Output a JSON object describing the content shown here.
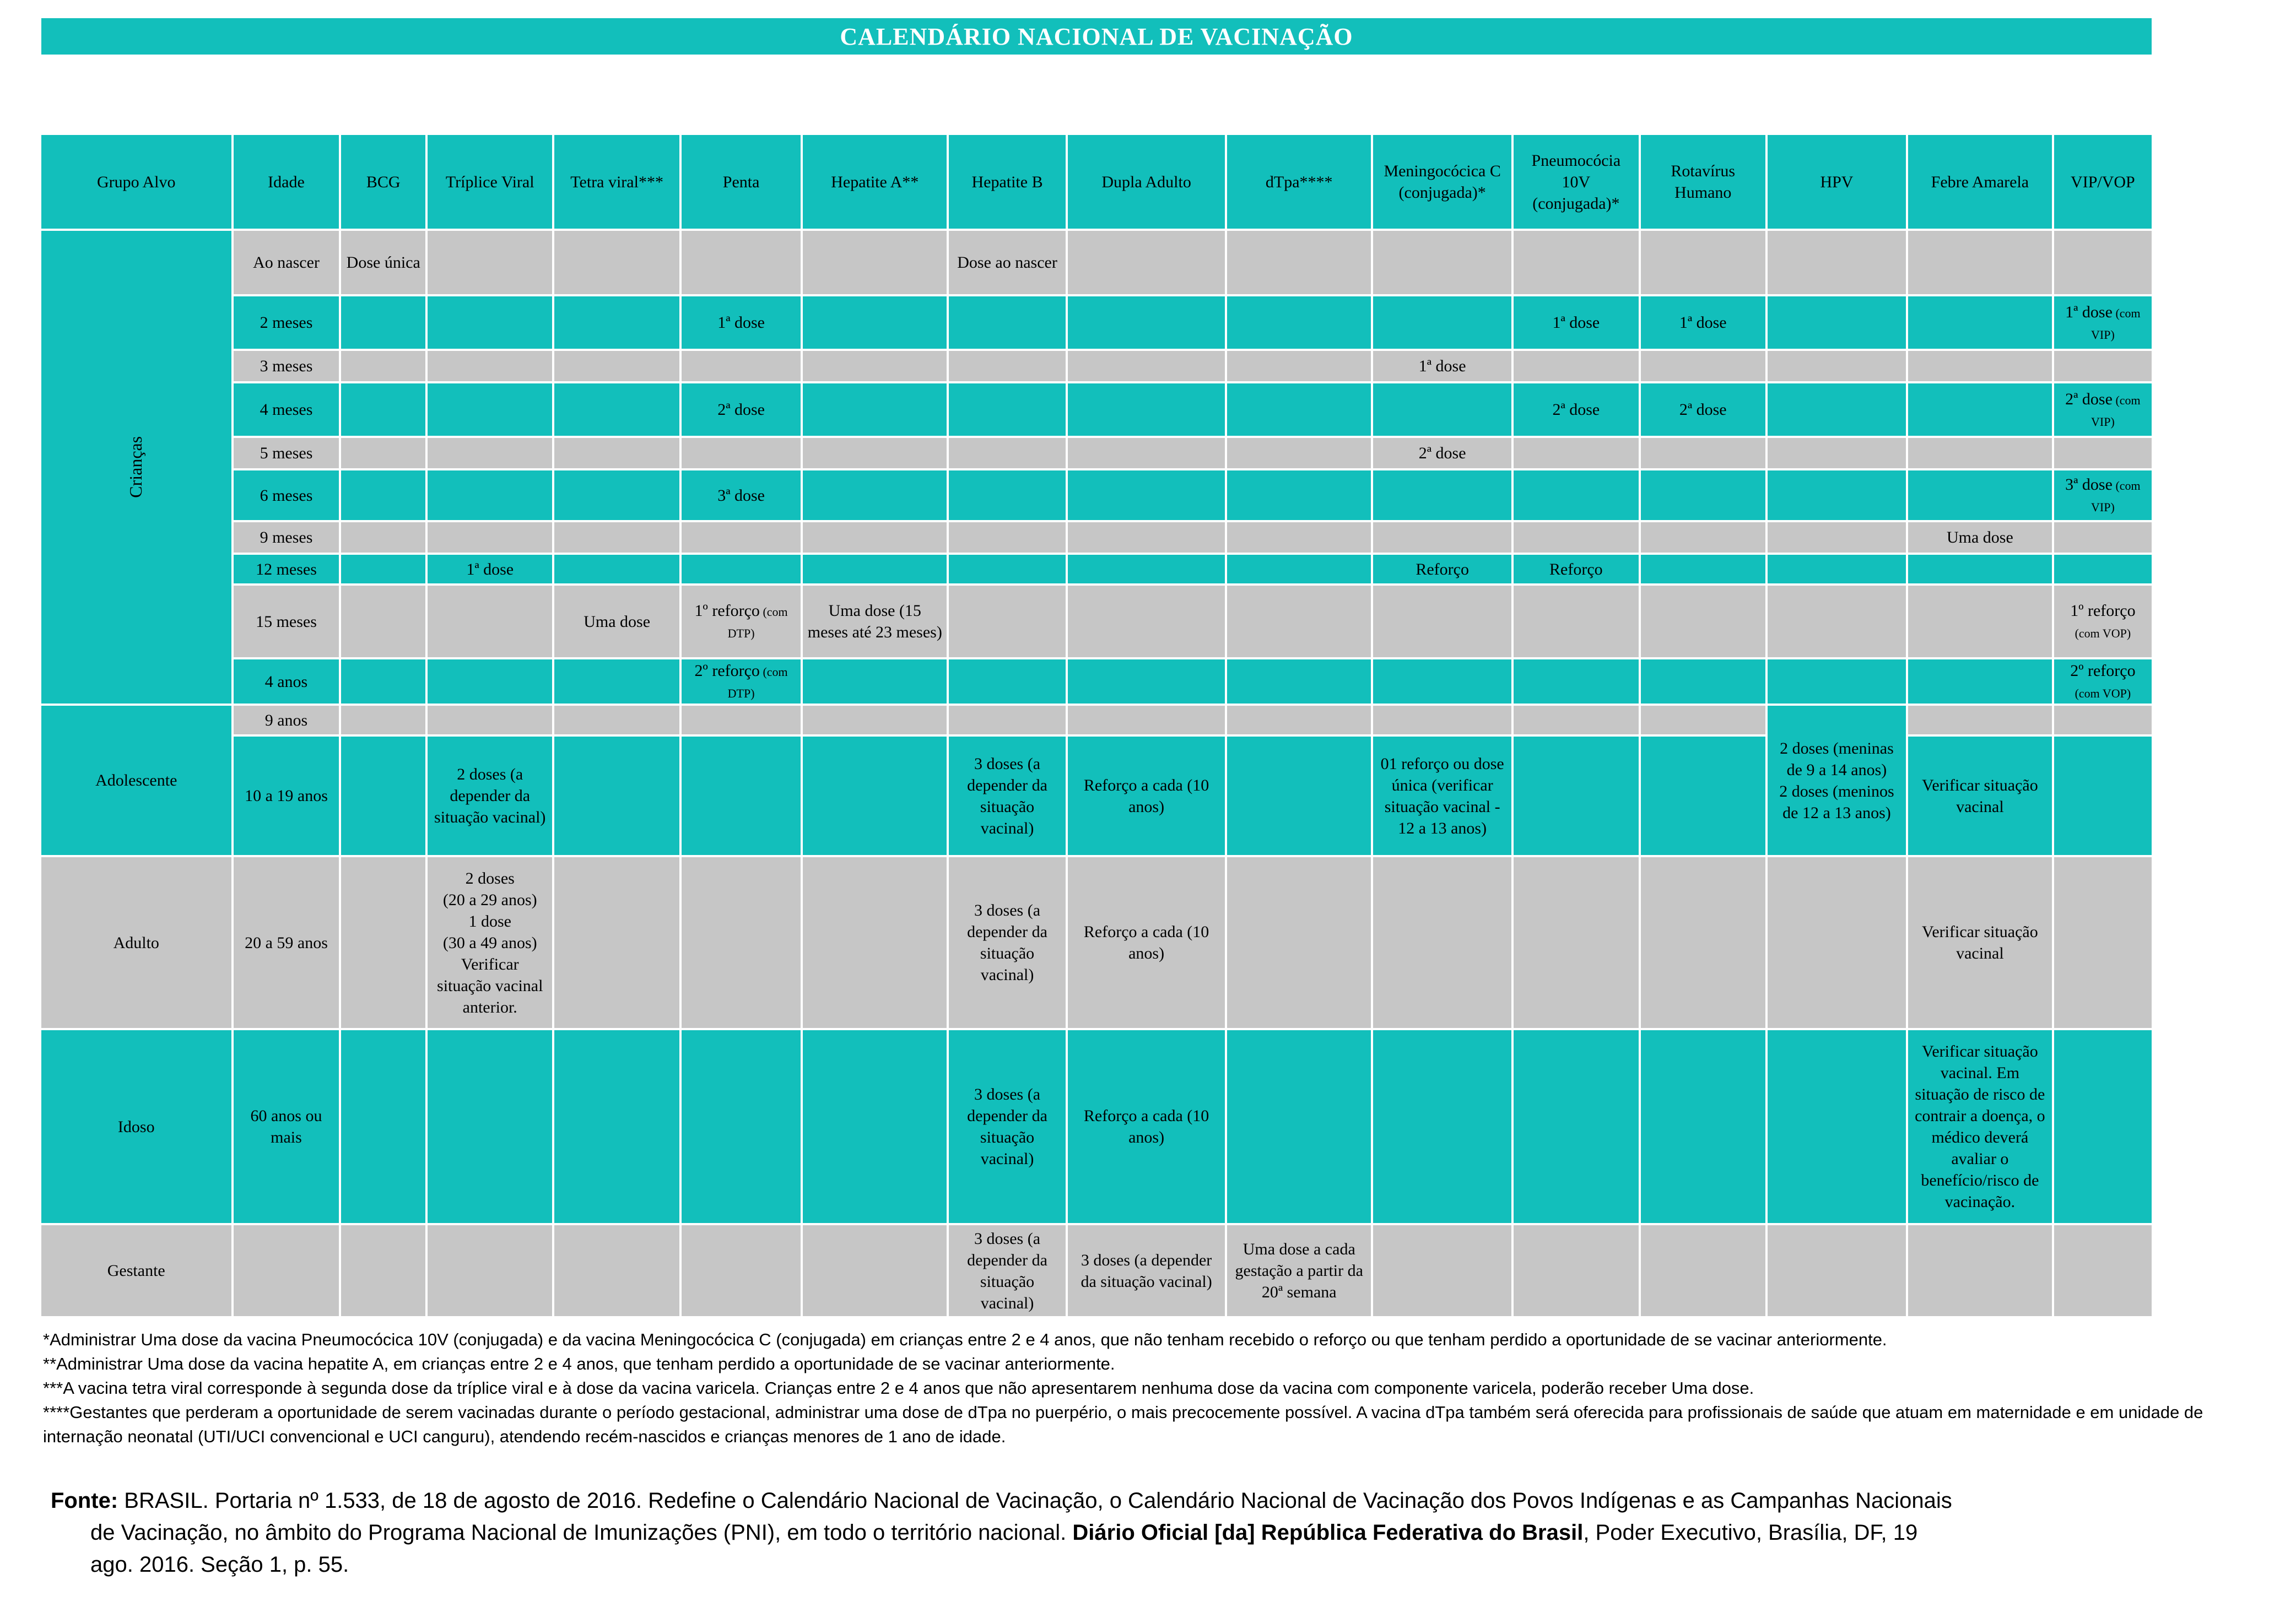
{
  "title": "CALENDÁRIO NACIONAL DE VACINAÇÃO",
  "colors": {
    "teal": "#12BFBB",
    "gray": "#C6C6C6",
    "title_text": "#FFFFFF",
    "body_text": "#000000",
    "background": "#FFFFFF"
  },
  "table": {
    "columns": [
      {
        "id": "grupo",
        "label": "Grupo Alvo"
      },
      {
        "id": "idade",
        "label": "Idade"
      },
      {
        "id": "bcg",
        "label": "BCG"
      },
      {
        "id": "triplice",
        "label": "Tríplice Viral"
      },
      {
        "id": "tetra",
        "label": "Tetra viral***"
      },
      {
        "id": "penta",
        "label": "Penta"
      },
      {
        "id": "hep_a",
        "label": "Hepatite A**"
      },
      {
        "id": "hep_b",
        "label": "Hepatite B"
      },
      {
        "id": "dupla",
        "label": "Dupla Adulto"
      },
      {
        "id": "dtpa",
        "label": "dTpa****"
      },
      {
        "id": "mening",
        "label": "Meningocócica C (conjugada)*"
      },
      {
        "id": "pneumo",
        "label": "Pneumocócia 10V (conjugada)*"
      },
      {
        "id": "rota",
        "label": "Rotavírus Humano"
      },
      {
        "id": "hpv",
        "label": "HPV"
      },
      {
        "id": "febre",
        "label": "Febre Amarela"
      },
      {
        "id": "vip",
        "label": "VIP/VOP"
      }
    ],
    "groups": [
      {
        "id": "criancas",
        "label": "Crianças",
        "tone": "teal",
        "startRow": 1,
        "rowSpan": 10,
        "vertical": true
      },
      {
        "id": "adolescente",
        "label": "Adolescente",
        "tone": "teal",
        "startRow": 11,
        "rowSpan": 2,
        "vertical": false
      },
      {
        "id": "adulto",
        "label": "Adulto",
        "tone": "gray",
        "startRow": 13,
        "rowSpan": 1,
        "vertical": false
      },
      {
        "id": "idoso",
        "label": "Idoso",
        "tone": "teal",
        "startRow": 14,
        "rowSpan": 1,
        "vertical": false
      },
      {
        "id": "gestante",
        "label": "Gestante",
        "tone": "gray",
        "startRow": 15,
        "rowSpan": 1,
        "vertical": false
      }
    ],
    "rows": [
      {
        "id": "ao-nascer",
        "idade": "Ao nascer",
        "tone": "gray",
        "cells": [
          {
            "col": "bcg",
            "text": "Dose única"
          },
          {
            "col": "hep_b",
            "text": "Dose ao nascer"
          }
        ]
      },
      {
        "id": "2-meses",
        "idade": "2 meses",
        "tone": "teal",
        "cells": [
          {
            "col": "penta",
            "text": "1ª dose"
          },
          {
            "col": "pneumo",
            "text": "1ª dose"
          },
          {
            "col": "rota",
            "text": "1ª dose"
          },
          {
            "col": "vip",
            "text": "1ª dose",
            "sub": "(com VIP)"
          }
        ]
      },
      {
        "id": "3-meses",
        "idade": "3 meses",
        "tone": "gray",
        "cells": [
          {
            "col": "mening",
            "text": "1ª dose"
          }
        ]
      },
      {
        "id": "4-meses",
        "idade": "4 meses",
        "tone": "teal",
        "cells": [
          {
            "col": "penta",
            "text": "2ª dose"
          },
          {
            "col": "pneumo",
            "text": "2ª dose"
          },
          {
            "col": "rota",
            "text": "2ª dose"
          },
          {
            "col": "vip",
            "text": "2ª dose",
            "sub": "(com VIP)"
          }
        ]
      },
      {
        "id": "5-meses",
        "idade": "5 meses",
        "tone": "gray",
        "cells": [
          {
            "col": "mening",
            "text": "2ª dose"
          }
        ]
      },
      {
        "id": "6-meses",
        "idade": "6 meses",
        "tone": "teal",
        "cells": [
          {
            "col": "penta",
            "text": "3ª dose"
          },
          {
            "col": "vip",
            "text": "3ª dose",
            "sub": "(com VIP)"
          }
        ]
      },
      {
        "id": "9-meses",
        "idade": "9 meses",
        "tone": "gray",
        "cells": [
          {
            "col": "febre",
            "text": "Uma dose"
          }
        ]
      },
      {
        "id": "12-meses",
        "idade": "12 meses",
        "tone": "teal",
        "cells": [
          {
            "col": "triplice",
            "text": "1ª dose"
          },
          {
            "col": "mening",
            "text": "Reforço"
          },
          {
            "col": "pneumo",
            "text": "Reforço"
          }
        ]
      },
      {
        "id": "15-meses",
        "idade": "15 meses",
        "tone": "gray",
        "cells": [
          {
            "col": "tetra",
            "text": "Uma dose"
          },
          {
            "col": "penta",
            "text": "1º reforço",
            "sub": "(com DTP)"
          },
          {
            "col": "hep_a",
            "text": "Uma dose (15 meses até 23 meses)"
          },
          {
            "col": "vip",
            "text": "1º reforço",
            "sub": "(com VOP)"
          }
        ]
      },
      {
        "id": "4-anos",
        "idade": "4 anos",
        "tone": "teal",
        "cells": [
          {
            "col": "penta",
            "text": "2º reforço",
            "sub": "(com DTP)"
          },
          {
            "col": "vip",
            "text": "2º reforço",
            "sub": "(com VOP)"
          }
        ]
      },
      {
        "id": "9-anos",
        "idade": "9 anos",
        "tone": "gray",
        "cells": []
      },
      {
        "id": "10-a-19-anos",
        "idade": "10 a 19 anos",
        "tone": "teal",
        "cells": [
          {
            "col": "triplice",
            "text": "2 doses (a depender da situação vacinal)"
          },
          {
            "col": "hep_b",
            "text": "3 doses (a depender da situação vacinal)"
          },
          {
            "col": "dupla",
            "text": "Reforço a cada (10 anos)"
          },
          {
            "col": "mening",
            "text": "01 reforço ou dose única (verificar situação vacinal - 12 a 13 anos)"
          },
          {
            "col": "febre",
            "text": "Verificar situação vacinal"
          }
        ]
      },
      {
        "id": "20-a-59-anos",
        "idade": "20 a 59 anos",
        "tone": "gray",
        "cells": [
          {
            "col": "triplice",
            "lines": [
              "2 doses",
              "(20 a 29 anos)",
              "1 dose",
              "(30 a 49 anos)",
              "Verificar situação vacinal anterior."
            ]
          },
          {
            "col": "hep_b",
            "text": "3 doses (a depender da situação vacinal)"
          },
          {
            "col": "dupla",
            "text": "Reforço a cada (10 anos)"
          },
          {
            "col": "febre",
            "text": "Verificar situação vacinal"
          }
        ]
      },
      {
        "id": "60-anos-ou-mais",
        "idade": "60 anos ou mais",
        "tone": "teal",
        "cells": [
          {
            "col": "hep_b",
            "text": "3 doses (a depender da situação vacinal)"
          },
          {
            "col": "dupla",
            "text": "Reforço a cada (10 anos)"
          },
          {
            "col": "febre",
            "text": "Verificar situação vacinal. Em situação de risco de contrair a doença, o médico deverá avaliar o benefício/risco de vacinação."
          }
        ]
      },
      {
        "id": "gestante",
        "idade": "",
        "tone": "gray",
        "cells": [
          {
            "col": "hep_b",
            "text": "3 doses (a depender da situação vacinal)"
          },
          {
            "col": "dupla",
            "text": "3 doses  (a depender da situação vacinal)"
          },
          {
            "col": "dtpa",
            "text": "Uma dose a cada gestação a partir da 20ª semana"
          }
        ]
      }
    ],
    "spans": [
      {
        "col": "hpv",
        "tone": "teal",
        "startRow": 11,
        "rowSpan": 2,
        "lines": [
          "2 doses (meninas de 9 a 14 anos)",
          "2 doses (meninos de 12 a 13 anos)"
        ]
      }
    ]
  },
  "footnotes": [
    "*Administrar Uma dose da vacina Pneumocócica 10V (conjugada) e da vacina Meningocócica C (conjugada) em crianças entre 2 e 4 anos, que não tenham recebido o reforço ou que tenham perdido a oportunidade de se vacinar anteriormente.",
    "**Administrar Uma dose da vacina hepatite A, em crianças entre 2 e 4 anos, que tenham perdido a oportunidade de se vacinar anteriormente.",
    "***A vacina tetra viral corresponde à segunda dose da tríplice viral e à dose da vacina varicela. Crianças entre 2 e 4 anos que não apresentarem nenhuma dose da vacina com componente varicela, poderão receber Uma dose.",
    "****Gestantes que perderam a oportunidade de serem vacinadas durante o período gestacional, administrar uma dose de dTpa no puerpério, o mais precocemente possível. A vacina dTpa também será oferecida para profissionais de saúde que atuam em maternidade e em unidade de internação neonatal (UTI/UCI convencional e UCI canguru), atendendo recém-nascidos e crianças menores de 1 ano de idade."
  ],
  "fonte": {
    "label": "Fonte:",
    "pre": " BRASIL. Portaria nº 1.533, de 18 de agosto de 2016. Redefine o Calendário Nacional de Vacinação, o Calendário Nacional de Vacinação dos Povos Indígenas e as Campanhas Nacionais de Vacinação, no âmbito do Programa Nacional de Imunizações (PNI), em todo o território nacional. ",
    "bold_part": "Diário Oficial [da] República Federativa do Brasil",
    "post": ", Poder Executivo, Brasília, DF, 19 ago. 2016. Seção 1, p. 55."
  }
}
